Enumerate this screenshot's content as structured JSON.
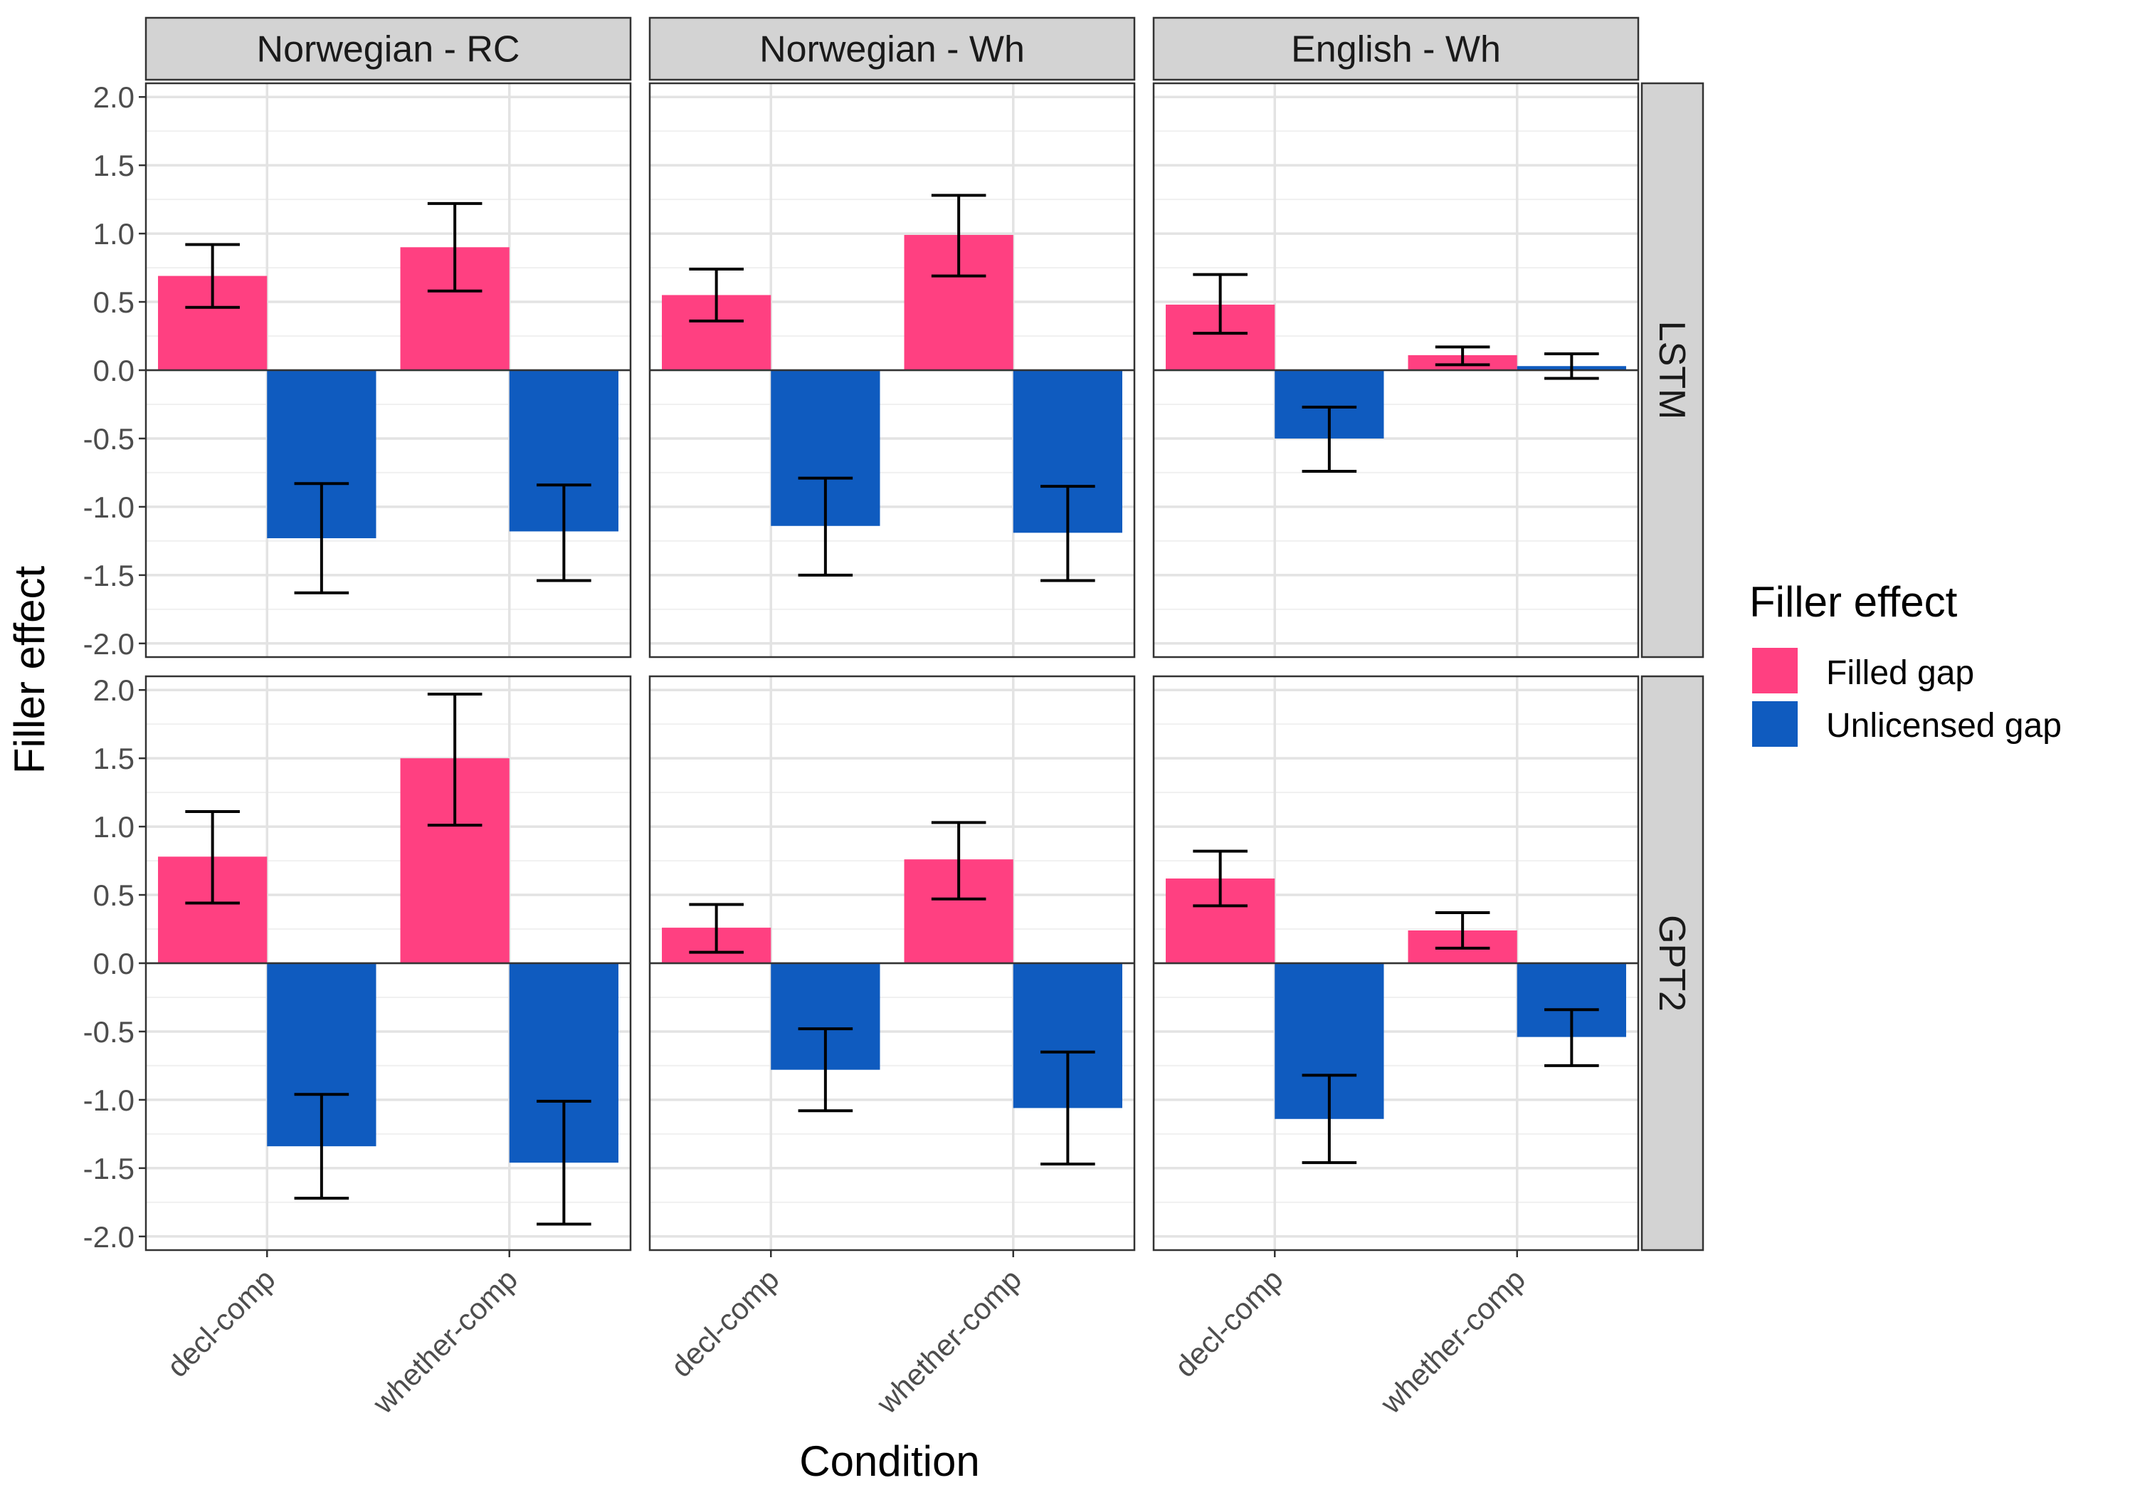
{
  "chart_data": {
    "type": "bar",
    "xlabel": "Condition",
    "ylabel": "Filler effect",
    "ylim": [
      -2.1,
      2.1
    ],
    "yticks": [
      2.0,
      1.5,
      1.0,
      0.5,
      0.0,
      -0.5,
      -1.0,
      -1.5,
      -2.0
    ],
    "ytick_labels": [
      "2.0",
      "1.5",
      "1.0",
      "0.5",
      "0.0",
      "-0.5",
      "-1.0",
      "-1.5",
      "-2.0"
    ],
    "categories": [
      "decl-comp",
      "whether-comp"
    ],
    "column_facets": [
      "Norwegian - RC",
      "Norwegian - Wh",
      "English - Wh"
    ],
    "row_facets": [
      "LSTM",
      "GPT2"
    ],
    "grid": true,
    "legend": {
      "title": "Filler effect",
      "position": "right",
      "entries": [
        {
          "label": "Filled gap",
          "color": "#ff4081"
        },
        {
          "label": "Unlicensed gap",
          "color": "#0f5bbf"
        }
      ]
    },
    "panels": [
      {
        "row": "LSTM",
        "column": "Norwegian - RC",
        "series": [
          {
            "name": "Filled gap",
            "values": [
              0.69,
              0.9
            ],
            "err_low": [
              0.46,
              0.58
            ],
            "err_high": [
              0.92,
              1.22
            ]
          },
          {
            "name": "Unlicensed gap",
            "values": [
              -1.23,
              -1.18
            ],
            "err_low": [
              -1.63,
              -1.54
            ],
            "err_high": [
              -0.83,
              -0.84
            ]
          }
        ]
      },
      {
        "row": "LSTM",
        "column": "Norwegian - Wh",
        "series": [
          {
            "name": "Filled gap",
            "values": [
              0.55,
              0.99
            ],
            "err_low": [
              0.36,
              0.69
            ],
            "err_high": [
              0.74,
              1.28
            ]
          },
          {
            "name": "Unlicensed gap",
            "values": [
              -1.14,
              -1.19
            ],
            "err_low": [
              -1.5,
              -1.54
            ],
            "err_high": [
              -0.79,
              -0.85
            ]
          }
        ]
      },
      {
        "row": "LSTM",
        "column": "English - Wh",
        "series": [
          {
            "name": "Filled gap",
            "values": [
              0.48,
              0.11
            ],
            "err_low": [
              0.27,
              0.04
            ],
            "err_high": [
              0.7,
              0.17
            ]
          },
          {
            "name": "Unlicensed gap",
            "values": [
              -0.5,
              0.03
            ],
            "err_low": [
              -0.74,
              -0.06
            ],
            "err_high": [
              -0.27,
              0.12
            ]
          }
        ]
      },
      {
        "row": "GPT2",
        "column": "Norwegian - RC",
        "series": [
          {
            "name": "Filled gap",
            "values": [
              0.78,
              1.5
            ],
            "err_low": [
              0.44,
              1.01
            ],
            "err_high": [
              1.11,
              1.97
            ]
          },
          {
            "name": "Unlicensed gap",
            "values": [
              -1.34,
              -1.46
            ],
            "err_low": [
              -1.72,
              -1.91
            ],
            "err_high": [
              -0.96,
              -1.01
            ]
          }
        ]
      },
      {
        "row": "GPT2",
        "column": "Norwegian - Wh",
        "series": [
          {
            "name": "Filled gap",
            "values": [
              0.26,
              0.76
            ],
            "err_low": [
              0.08,
              0.47
            ],
            "err_high": [
              0.43,
              1.03
            ]
          },
          {
            "name": "Unlicensed gap",
            "values": [
              -0.78,
              -1.06
            ],
            "err_low": [
              -1.08,
              -1.47
            ],
            "err_high": [
              -0.48,
              -0.65
            ]
          }
        ]
      },
      {
        "row": "GPT2",
        "column": "English - Wh",
        "series": [
          {
            "name": "Filled gap",
            "values": [
              0.62,
              0.24
            ],
            "err_low": [
              0.42,
              0.11
            ],
            "err_high": [
              0.82,
              0.37
            ]
          },
          {
            "name": "Unlicensed gap",
            "values": [
              -1.14,
              -0.54
            ],
            "err_low": [
              -1.46,
              -0.75
            ],
            "err_high": [
              -0.82,
              -0.34
            ]
          }
        ]
      }
    ]
  }
}
